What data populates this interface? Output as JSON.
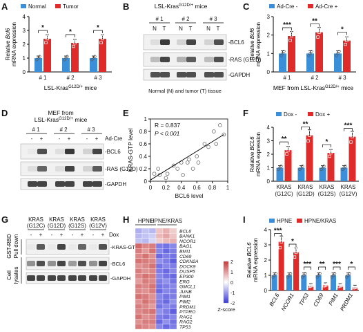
{
  "panels": {
    "A": {
      "label": "A",
      "legend": [
        "Normal",
        "Tumor"
      ],
      "ylabel": "Relative Bcl6 mRNA expression",
      "yticks": [
        "0",
        "1",
        "2",
        "3",
        "4"
      ],
      "groups": [
        "# 1",
        "# 2",
        "# 3"
      ],
      "xtitle": "LSL-Kras",
      "xtitle_sup": "G12D/+",
      "xtitle_tail": " mice",
      "sig": [
        "*",
        "*",
        "*"
      ]
    },
    "B": {
      "label": "B",
      "title": "LSL-Kras",
      "title_sup": "G12D/+",
      "title_tail": " mice",
      "groups": [
        "# 1",
        "# 2",
        "# 3"
      ],
      "lanes": [
        "N",
        "T",
        "N",
        "T",
        "N",
        "T"
      ],
      "bands": [
        "-BCL6",
        "-RAS (G12D)",
        "-GAPDH"
      ],
      "caption": "Normal (N) and tumor (T) tissue"
    },
    "C": {
      "label": "C",
      "legend": [
        "Ad-Cre -",
        "Ad-Cre +"
      ],
      "ylabel": "Relative Bcl6 mRNA expression",
      "yticks": [
        "0",
        "1",
        "2",
        "3"
      ],
      "groups": [
        "# 1",
        "# 2",
        "# 3"
      ],
      "xtitle": "MEF from LSL-Kras",
      "xtitle_sup": "G12D/+",
      "xtitle_tail": " mice",
      "sig": [
        "***",
        "**",
        "*"
      ]
    },
    "D": {
      "label": "D",
      "title1": "MEF from",
      "title2": "LSL-Kras",
      "title2_sup": "G12D/+",
      "title2_tail": " mice",
      "groups": [
        "# 1",
        "# 2",
        "# 3"
      ],
      "treat_label": "Ad-Cre",
      "treat": [
        "-",
        "+",
        "-",
        "+",
        "-",
        "+"
      ],
      "bands": [
        "-BCL6",
        "-RAS (G12D)",
        "-GAPDH"
      ]
    },
    "E": {
      "label": "E",
      "r": "R = 0.837",
      "p": "P < 0.001",
      "xlabel": "BCL6  level",
      "ylabel": "KRAS-GTP level",
      "xticks": [
        "0",
        "0.2",
        "0.4",
        "0.6",
        "0.8",
        "1"
      ],
      "yticks": [
        "0",
        "0.2",
        "0.4",
        "0.6",
        "0.8",
        "1"
      ]
    },
    "F": {
      "label": "F",
      "legend": [
        "Dox -",
        "Dox +"
      ],
      "ylabel": "Relative BCL6 mRNA expression",
      "yticks": [
        "0",
        "1",
        "2",
        "3",
        "4"
      ],
      "groups": [
        [
          "KRAS",
          "(G12C)"
        ],
        [
          "KRAS",
          "(G12D)"
        ],
        [
          "KRAS",
          "(G12S)"
        ],
        [
          "KRAS",
          "(G12V)"
        ]
      ],
      "sig": [
        "**",
        "**",
        "*",
        "***"
      ]
    },
    "G": {
      "label": "G",
      "cols": [
        [
          "KRAS",
          "(G12C)"
        ],
        [
          "KRAS",
          "(G12D)"
        ],
        [
          "KRAS",
          "(G12S)"
        ],
        [
          "KRAS",
          "(G12V)"
        ]
      ],
      "treat_label": "Dox",
      "treat": [
        "-",
        "+",
        "-",
        "+",
        "-",
        "+",
        "-",
        "+"
      ],
      "side1": "GST-RBD Pull down",
      "side2": "Cell lysates",
      "bands": [
        "-KRAS-GTP",
        "-BCL6",
        "-GAPDH"
      ]
    },
    "H": {
      "label": "H",
      "cols": [
        "HPNE",
        "HPNE/KRAS"
      ],
      "genes": [
        "BCL6",
        "BANK1",
        "NCOR1",
        "BAG1",
        "BMI1",
        "CD69",
        "CDKN2A",
        "DOCK9",
        "DUSP5",
        "EP300",
        "ERG",
        "GMCL1",
        "JUNB",
        "PIM1",
        "PIM2",
        "PRDM1",
        "PTPRO",
        "RAG1",
        "RAG2",
        "TP53"
      ],
      "scale": [
        "2",
        "1",
        "0",
        "-1",
        "-2"
      ],
      "scale_label": "Z-score"
    },
    "I": {
      "label": "I",
      "legend": [
        "HPNE",
        "HPNE/KRAS"
      ],
      "ylabel": "Relative BCL6 mRNA expression",
      "yticks": [
        "0",
        "1",
        "2",
        "3",
        "4"
      ],
      "groups": [
        "BCL6",
        "NCOR1",
        "TP53",
        "CD69",
        "PIM1",
        "PRDM1"
      ],
      "sig": [
        "***",
        "*",
        "***",
        "**",
        "***",
        "*"
      ]
    }
  },
  "colors": {
    "blue": "#3b8fd8",
    "red": "#e02b2b"
  },
  "chart_data": [
    {
      "panel": "A",
      "type": "bar",
      "categories": [
        "# 1",
        "# 2",
        "# 3"
      ],
      "series": [
        {
          "name": "Normal",
          "values": [
            1.0,
            1.0,
            1.0
          ]
        },
        {
          "name": "Tumor",
          "values": [
            2.4,
            2.1,
            2.4
          ]
        }
      ],
      "ylim": [
        0,
        4
      ]
    },
    {
      "panel": "C",
      "type": "bar",
      "categories": [
        "# 1",
        "# 2",
        "# 3"
      ],
      "series": [
        {
          "name": "Ad-Cre -",
          "values": [
            1.0,
            1.0,
            1.0
          ]
        },
        {
          "name": "Ad-Cre +",
          "values": [
            1.95,
            2.15,
            1.7
          ]
        }
      ],
      "ylim": [
        0,
        3
      ]
    },
    {
      "panel": "E",
      "type": "scatter",
      "xlim": [
        0,
        1
      ],
      "ylim": [
        0,
        1
      ],
      "points": [
        [
          0.05,
          0.12
        ],
        [
          0.1,
          0.2
        ],
        [
          0.12,
          0.1
        ],
        [
          0.2,
          0.05
        ],
        [
          0.22,
          0.12
        ],
        [
          0.3,
          0.25
        ],
        [
          0.35,
          0.2
        ],
        [
          0.4,
          0.3
        ],
        [
          0.42,
          0.1
        ],
        [
          0.48,
          0.3
        ],
        [
          0.5,
          0.35
        ],
        [
          0.55,
          0.2
        ],
        [
          0.6,
          0.4
        ],
        [
          0.62,
          0.3
        ],
        [
          0.7,
          0.6
        ],
        [
          0.75,
          0.55
        ],
        [
          0.82,
          0.8
        ],
        [
          0.85,
          0.6
        ],
        [
          0.9,
          0.9
        ],
        [
          0.95,
          0.75
        ]
      ],
      "fit": [
        [
          0,
          0.02
        ],
        [
          0.95,
          0.75
        ]
      ]
    },
    {
      "panel": "F",
      "type": "bar",
      "categories": [
        "KRAS (G12C)",
        "KRAS (G12D)",
        "KRAS (G12S)",
        "KRAS (G12V)"
      ],
      "series": [
        {
          "name": "Dox -",
          "values": [
            1.0,
            1.0,
            1.0,
            1.0
          ]
        },
        {
          "name": "Dox +",
          "values": [
            2.3,
            3.4,
            2.1,
            3.3
          ]
        }
      ],
      "ylim": [
        0,
        4
      ]
    },
    {
      "panel": "I",
      "type": "bar",
      "categories": [
        "BCL6",
        "NCOR1",
        "TP53",
        "CD69",
        "PIM1",
        "PRDM1"
      ],
      "series": [
        {
          "name": "HPNE",
          "values": [
            1.0,
            1.0,
            1.0,
            1.0,
            1.0,
            1.0
          ]
        },
        {
          "name": "HPNE/KRAS",
          "values": [
            3.2,
            2.5,
            0.3,
            0.35,
            0.3,
            0.2
          ]
        }
      ],
      "ylim": [
        0,
        4
      ]
    },
    {
      "panel": "H",
      "type": "heatmap",
      "columns": 6,
      "rows": [
        [
          -0.8,
          -0.6,
          -0.7,
          0.6,
          0.8,
          0.5
        ],
        [
          -0.7,
          -0.6,
          -0.5,
          0.7,
          0.9,
          0.6
        ],
        [
          -0.6,
          -0.7,
          -0.4,
          0.5,
          0.7,
          0.8
        ],
        [
          1.5,
          1.2,
          1.3,
          -1.3,
          -1.4,
          -1.2
        ],
        [
          1.3,
          1.0,
          1.4,
          -1.2,
          -1.5,
          -1.3
        ],
        [
          1.2,
          1.4,
          1.1,
          -1.5,
          -1.3,
          -1.4
        ],
        [
          1.4,
          1.3,
          1.2,
          -1.1,
          -1.3,
          -1.6
        ],
        [
          1.1,
          1.2,
          1.4,
          -1.4,
          -1.2,
          -1.3
        ],
        [
          1.3,
          1.1,
          1.2,
          -1.3,
          -1.5,
          -1.2
        ],
        [
          1.2,
          1.4,
          1.3,
          -1.2,
          -1.4,
          -1.5
        ],
        [
          1.0,
          1.3,
          1.2,
          -1.3,
          -1.1,
          -1.4
        ],
        [
          1.3,
          1.2,
          1.4,
          -1.4,
          -1.3,
          -1.2
        ],
        [
          1.2,
          1.1,
          1.3,
          -1.5,
          -1.2,
          -1.3
        ],
        [
          1.4,
          1.3,
          1.1,
          -1.2,
          -1.4,
          -1.3
        ],
        [
          1.1,
          1.4,
          1.2,
          -1.3,
          -1.5,
          -1.1
        ],
        [
          1.3,
          1.2,
          1.0,
          -1.4,
          -1.2,
          -1.3
        ],
        [
          1.2,
          1.3,
          1.4,
          -1.1,
          -1.3,
          -1.6
        ],
        [
          1.4,
          1.1,
          1.2,
          -1.3,
          -1.4,
          -1.2
        ],
        [
          1.1,
          1.3,
          1.3,
          -1.5,
          -1.1,
          -1.4
        ],
        [
          1.3,
          1.2,
          1.1,
          -1.2,
          -1.5,
          -1.3
        ]
      ]
    }
  ]
}
